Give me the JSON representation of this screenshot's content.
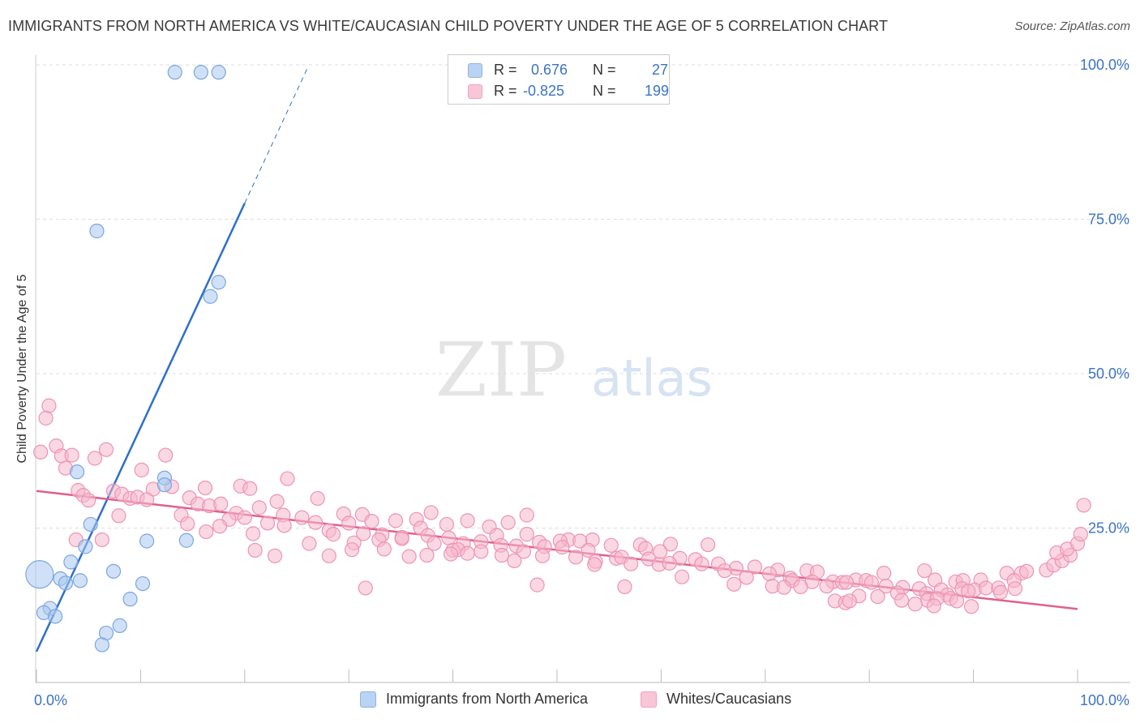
{
  "title": "IMMIGRANTS FROM NORTH AMERICA VS WHITE/CAUCASIAN CHILD POVERTY UNDER THE AGE OF 5 CORRELATION CHART",
  "source": "Source: ZipAtlas.com",
  "watermark": {
    "zip": "ZIP",
    "atlas": "atlas"
  },
  "legend": {
    "r_label": "R =",
    "n_label": "N =",
    "rows": [
      {
        "r": "0.676",
        "n": "27"
      },
      {
        "r": "-0.825",
        "n": "199"
      }
    ]
  },
  "bottom_legend": [
    {
      "label": "Immigrants from North America"
    },
    {
      "label": "Whites/Caucasians"
    }
  ],
  "colors": {
    "blue_fill": "#a9c8f0",
    "blue_stroke": "#7aa6e0",
    "blue_line": "#2e6fcc",
    "pink_fill": "#f5b8cc",
    "pink_stroke": "#ee93b2",
    "pink_line": "#e0608c",
    "tick_text": "#3b73c6",
    "grid": "#dddddd"
  },
  "chart_data": {
    "type": "scatter",
    "title": "IMMIGRANTS FROM NORTH AMERICA VS WHITE/CAUCASIAN CHILD POVERTY UNDER THE AGE OF 5 CORRELATION CHART",
    "xlabel": "",
    "ylabel": "Child Poverty Under the Age of 5",
    "xlim": [
      0,
      100
    ],
    "ylim": [
      0,
      100
    ],
    "x_tick_labels": [
      "0.0%",
      "100.0%"
    ],
    "y_ticks": [
      25,
      50,
      75,
      100
    ],
    "y_tick_labels": [
      "25.0%",
      "50.0%",
      "75.0%",
      "100.0%"
    ],
    "grid": true,
    "legend_position": "top-center",
    "series": [
      {
        "name": "Immigrants from North America",
        "r": 0.676,
        "n": 27,
        "trend": {
          "x0": 0.0,
          "y0": 5.0,
          "x1": 20.0,
          "y1": 77.6,
          "dashed_to_x": 26.1
        },
        "points": [
          [
            13.3,
            98.8
          ],
          [
            15.8,
            98.8
          ],
          [
            17.5,
            98.8
          ],
          [
            5.8,
            73.1
          ],
          [
            17.5,
            64.8
          ],
          [
            16.7,
            62.5
          ],
          [
            0.3,
            17.5
          ],
          [
            3.9,
            34.1
          ],
          [
            12.3,
            33.1
          ],
          [
            12.3,
            32.0
          ],
          [
            5.2,
            25.6
          ],
          [
            14.4,
            23.0
          ],
          [
            10.6,
            22.9
          ],
          [
            4.7,
            22.0
          ],
          [
            3.3,
            19.5
          ],
          [
            7.4,
            18.0
          ],
          [
            2.3,
            16.8
          ],
          [
            4.2,
            16.5
          ],
          [
            2.8,
            16.1
          ],
          [
            10.2,
            16.0
          ],
          [
            9.0,
            13.5
          ],
          [
            1.3,
            12.0
          ],
          [
            0.7,
            11.3
          ],
          [
            1.8,
            10.7
          ],
          [
            8.0,
            9.2
          ],
          [
            6.7,
            8.0
          ],
          [
            6.3,
            6.1
          ]
        ]
      },
      {
        "name": "Whites/Caucasians",
        "r": -0.825,
        "n": 199,
        "trend": {
          "x0": 0.0,
          "y0": 31.0,
          "x1": 100.0,
          "y1": 11.9
        },
        "points": [
          [
            1.2,
            44.8
          ],
          [
            0.9,
            42.8
          ],
          [
            1.9,
            38.3
          ],
          [
            0.4,
            37.3
          ],
          [
            2.4,
            36.7
          ],
          [
            3.4,
            36.8
          ],
          [
            6.7,
            37.7
          ],
          [
            5.6,
            36.3
          ],
          [
            12.4,
            36.8
          ],
          [
            2.8,
            34.7
          ],
          [
            10.1,
            34.4
          ],
          [
            24.1,
            33.0
          ],
          [
            4.0,
            31.1
          ],
          [
            7.4,
            31.0
          ],
          [
            11.2,
            31.3
          ],
          [
            13.0,
            31.7
          ],
          [
            16.2,
            31.5
          ],
          [
            19.6,
            31.8
          ],
          [
            20.5,
            31.4
          ],
          [
            8.2,
            30.5
          ],
          [
            4.5,
            30.3
          ],
          [
            5.0,
            29.5
          ],
          [
            9.0,
            29.8
          ],
          [
            9.7,
            30.0
          ],
          [
            10.6,
            29.6
          ],
          [
            14.7,
            29.9
          ],
          [
            23.1,
            29.3
          ],
          [
            27.0,
            29.8
          ],
          [
            15.5,
            28.9
          ],
          [
            16.6,
            28.6
          ],
          [
            17.7,
            28.9
          ],
          [
            21.4,
            28.3
          ],
          [
            7.9,
            27.0
          ],
          [
            13.9,
            27.1
          ],
          [
            19.2,
            27.4
          ],
          [
            25.5,
            26.7
          ],
          [
            29.5,
            27.3
          ],
          [
            31.3,
            27.2
          ],
          [
            37.9,
            27.5
          ],
          [
            47.1,
            27.1
          ],
          [
            18.5,
            26.4
          ],
          [
            20.0,
            26.7
          ],
          [
            23.7,
            27.1
          ],
          [
            26.8,
            25.9
          ],
          [
            30.0,
            25.8
          ],
          [
            32.2,
            26.1
          ],
          [
            34.5,
            26.2
          ],
          [
            36.5,
            26.4
          ],
          [
            39.4,
            25.6
          ],
          [
            41.4,
            26.2
          ],
          [
            45.3,
            25.9
          ],
          [
            36.9,
            25.0
          ],
          [
            43.5,
            25.2
          ],
          [
            14.5,
            25.7
          ],
          [
            17.6,
            25.3
          ],
          [
            22.2,
            25.8
          ],
          [
            23.8,
            25.4
          ],
          [
            28.1,
            24.6
          ],
          [
            16.3,
            24.4
          ],
          [
            20.8,
            24.1
          ],
          [
            28.5,
            24.0
          ],
          [
            31.4,
            24.1
          ],
          [
            33.2,
            23.9
          ],
          [
            35.1,
            23.5
          ],
          [
            37.6,
            23.8
          ],
          [
            39.6,
            23.4
          ],
          [
            44.2,
            23.8
          ],
          [
            47.1,
            24.0
          ],
          [
            51.1,
            23.1
          ],
          [
            53.4,
            23.1
          ],
          [
            52.2,
            22.9
          ],
          [
            42.7,
            22.8
          ],
          [
            48.3,
            22.7
          ],
          [
            50.3,
            22.9
          ],
          [
            3.8,
            23.1
          ],
          [
            6.3,
            23.1
          ],
          [
            26.2,
            22.5
          ],
          [
            30.5,
            22.6
          ],
          [
            32.9,
            23.1
          ],
          [
            35.1,
            23.3
          ],
          [
            38.2,
            22.5
          ],
          [
            41.0,
            22.5
          ],
          [
            44.6,
            22.2
          ],
          [
            46.1,
            22.1
          ],
          [
            48.8,
            22.0
          ],
          [
            50.5,
            21.9
          ],
          [
            55.2,
            22.2
          ],
          [
            58.0,
            22.3
          ],
          [
            60.9,
            22.4
          ],
          [
            64.5,
            22.3
          ],
          [
            53.0,
            21.4
          ],
          [
            58.5,
            21.7
          ],
          [
            59.9,
            21.2
          ],
          [
            21.0,
            21.4
          ],
          [
            30.3,
            21.5
          ],
          [
            33.4,
            21.6
          ],
          [
            40.0,
            21.4
          ],
          [
            42.7,
            21.2
          ],
          [
            46.8,
            21.2
          ],
          [
            40.5,
            21.5
          ],
          [
            35.8,
            20.4
          ],
          [
            22.9,
            20.5
          ],
          [
            28.1,
            20.5
          ],
          [
            37.5,
            20.6
          ],
          [
            39.8,
            20.8
          ],
          [
            41.4,
            20.9
          ],
          [
            44.7,
            20.6
          ],
          [
            48.6,
            20.5
          ],
          [
            51.8,
            20.3
          ],
          [
            55.7,
            20.1
          ],
          [
            56.2,
            20.3
          ],
          [
            58.8,
            20.0
          ],
          [
            61.8,
            20.1
          ],
          [
            63.3,
            19.9
          ],
          [
            53.7,
            19.6
          ],
          [
            53.6,
            19.1
          ],
          [
            57.1,
            19.2
          ],
          [
            59.8,
            19.1
          ],
          [
            60.8,
            19.3
          ],
          [
            63.9,
            19.2
          ],
          [
            65.5,
            19.2
          ],
          [
            69.0,
            18.7
          ],
          [
            67.2,
            18.5
          ],
          [
            66.1,
            18.1
          ],
          [
            71.2,
            18.2
          ],
          [
            70.4,
            17.6
          ],
          [
            74.0,
            18.1
          ],
          [
            75.0,
            17.9
          ],
          [
            81.4,
            17.7
          ],
          [
            85.3,
            18.1
          ],
          [
            93.2,
            17.7
          ],
          [
            94.6,
            17.7
          ],
          [
            95.1,
            18.0
          ],
          [
            68.2,
            17.0
          ],
          [
            72.4,
            16.9
          ],
          [
            62.0,
            17.1
          ],
          [
            72.6,
            16.5
          ],
          [
            74.5,
            16.3
          ],
          [
            76.5,
            16.3
          ],
          [
            77.4,
            16.2
          ],
          [
            78.7,
            16.6
          ],
          [
            79.7,
            16.5
          ],
          [
            86.3,
            16.6
          ],
          [
            88.3,
            16.3
          ],
          [
            89.0,
            16.5
          ],
          [
            90.7,
            16.6
          ],
          [
            93.9,
            16.5
          ],
          [
            67.0,
            15.9
          ],
          [
            70.7,
            15.6
          ],
          [
            71.8,
            15.4
          ],
          [
            73.4,
            15.5
          ],
          [
            75.9,
            15.6
          ],
          [
            77.8,
            16.2
          ],
          [
            80.2,
            16.2
          ],
          [
            81.6,
            15.6
          ],
          [
            83.2,
            15.4
          ],
          [
            84.8,
            15.2
          ],
          [
            86.9,
            15.0
          ],
          [
            88.9,
            15.2
          ],
          [
            90.1,
            15.0
          ],
          [
            91.2,
            15.3
          ],
          [
            92.4,
            15.3
          ],
          [
            94.0,
            15.2
          ],
          [
            89.5,
            14.8
          ],
          [
            92.6,
            14.6
          ],
          [
            82.7,
            14.5
          ],
          [
            85.5,
            14.4
          ],
          [
            79.0,
            14.0
          ],
          [
            87.5,
            14.2
          ],
          [
            80.8,
            13.9
          ],
          [
            83.1,
            13.3
          ],
          [
            85.6,
            13.3
          ],
          [
            86.5,
            13.6
          ],
          [
            87.8,
            13.6
          ],
          [
            88.4,
            13.2
          ],
          [
            76.7,
            13.2
          ],
          [
            77.7,
            12.9
          ],
          [
            78.1,
            13.2
          ],
          [
            84.4,
            12.7
          ],
          [
            86.2,
            12.4
          ],
          [
            89.8,
            12.3
          ],
          [
            56.5,
            15.5
          ],
          [
            31.6,
            15.3
          ],
          [
            45.9,
            19.7
          ],
          [
            48.1,
            15.8
          ],
          [
            97.0,
            18.2
          ],
          [
            97.7,
            19.0
          ],
          [
            98.5,
            19.7
          ],
          [
            99.3,
            20.6
          ],
          [
            98.0,
            21.0
          ],
          [
            99.0,
            21.6
          ],
          [
            100.0,
            22.5
          ],
          [
            100.3,
            24.0
          ],
          [
            100.6,
            28.7
          ]
        ]
      }
    ]
  }
}
